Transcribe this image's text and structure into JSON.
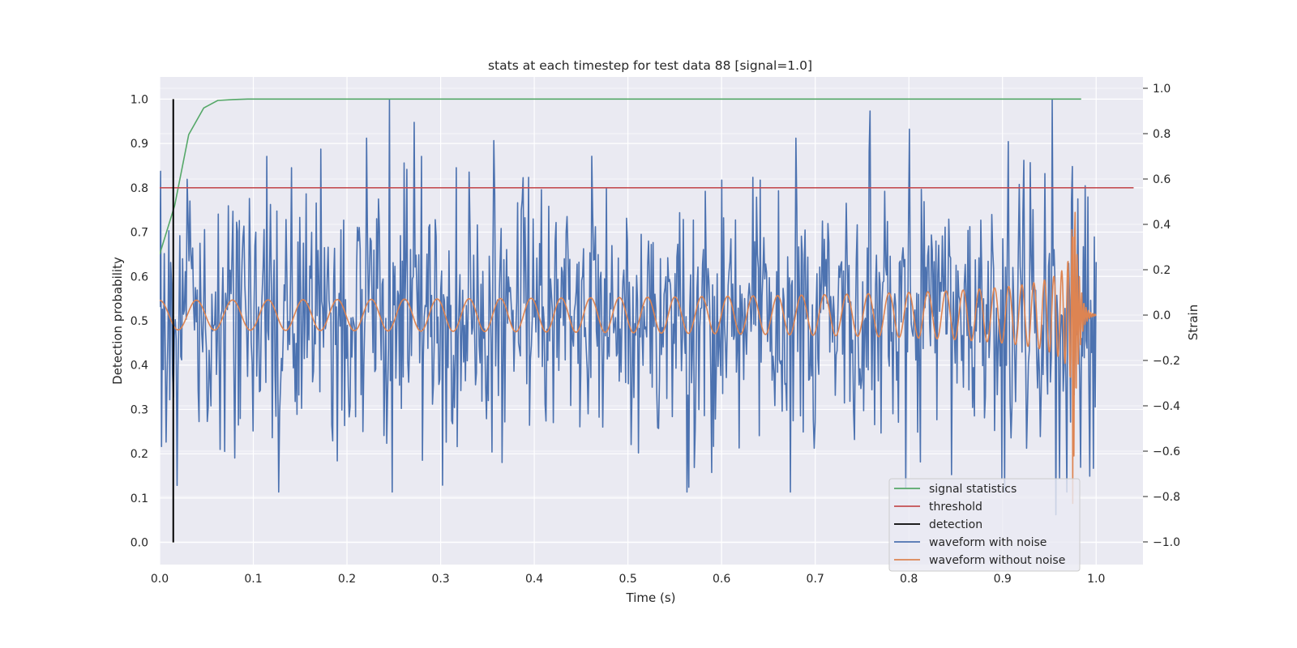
{
  "chart_data": {
    "type": "line",
    "title": "stats at each timestep for test data 88 [signal=1.0]",
    "xlabel": "Time (s)",
    "ylabel": "Detection probability",
    "y2label": "Strain",
    "xlim": [
      0.0,
      1.05
    ],
    "ylim": [
      -0.05,
      1.05
    ],
    "y2lim": [
      -1.1,
      1.05
    ],
    "grid": true,
    "xticks": [
      "0.0",
      "0.1",
      "0.2",
      "0.3",
      "0.4",
      "0.5",
      "0.6",
      "0.7",
      "0.8",
      "0.9",
      "1.0"
    ],
    "yticks": [
      "0.0",
      "0.1",
      "0.2",
      "0.3",
      "0.4",
      "0.5",
      "0.6",
      "0.7",
      "0.8",
      "0.9",
      "1.0"
    ],
    "y2ticks": [
      "−1.0",
      "−0.8",
      "−0.6",
      "−0.4",
      "−0.2",
      "0.0",
      "0.2",
      "0.4",
      "0.6",
      "0.8",
      "1.0"
    ],
    "legend": {
      "placement": "lower-right"
    },
    "series": [
      {
        "name": "signal statistics",
        "axis": "left",
        "color": "#55a868",
        "x": [
          0.0,
          0.016,
          0.031,
          0.047,
          0.062,
          0.078,
          0.094,
          0.2,
          0.4,
          0.6,
          0.8,
          0.984
        ],
        "y": [
          0.65,
          0.76,
          0.92,
          0.98,
          0.997,
          0.999,
          1.0,
          1.0,
          1.0,
          1.0,
          1.0,
          1.0
        ]
      },
      {
        "name": "threshold",
        "axis": "left",
        "color": "#c44e52",
        "x": [
          0.0,
          1.04
        ],
        "y": [
          0.8,
          0.8
        ]
      },
      {
        "name": "detection",
        "axis": "left",
        "color": "#000000",
        "x": [
          0.0145,
          0.0145
        ],
        "y": [
          0.0,
          1.0
        ]
      },
      {
        "name": "waveform with noise",
        "axis": "right",
        "color": "#4c72b0",
        "x_range": [
          0.0,
          1.0
        ],
        "num_points": 1024,
        "amplitude": 0.28,
        "y_peaks": [
          {
            "x": 0.245,
            "y": 0.95
          },
          {
            "x": 0.114,
            "y": 0.7
          },
          {
            "x": 0.141,
            "y": 0.65
          },
          {
            "x": 0.272,
            "y": 0.85
          },
          {
            "x": 0.28,
            "y": 0.7
          },
          {
            "x": 0.302,
            "y": -0.75
          },
          {
            "x": 0.366,
            "y": -0.65
          },
          {
            "x": 0.08,
            "y": -0.63
          },
          {
            "x": 0.281,
            "y": -0.64
          },
          {
            "x": 0.679,
            "y": 0.78
          },
          {
            "x": 0.759,
            "y": 0.9
          },
          {
            "x": 0.801,
            "y": 0.82
          },
          {
            "x": 0.953,
            "y": 0.95
          },
          {
            "x": 0.797,
            "y": -0.76
          },
          {
            "x": 0.902,
            "y": -0.78
          },
          {
            "x": 0.957,
            "y": -0.88
          },
          {
            "x": 0.969,
            "y": -0.78
          }
        ]
      },
      {
        "name": "waveform without noise",
        "axis": "right",
        "color": "#dd8452",
        "x_range": [
          0.0,
          1.0
        ],
        "amp_start": 0.065,
        "cycles": 39.5,
        "merger_time": 0.975,
        "peak_amplitude": 0.83
      }
    ]
  }
}
